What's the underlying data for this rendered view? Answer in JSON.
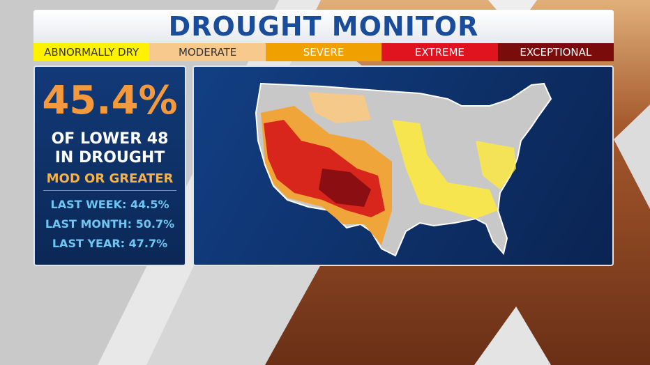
{
  "header": {
    "title": "DROUGHT MONITOR"
  },
  "legend": {
    "items": [
      {
        "label": "ABNORMALLY DRY",
        "color": "#fff200"
      },
      {
        "label": "MODERATE",
        "color": "#f7c98c"
      },
      {
        "label": "SEVERE",
        "color": "#f0a000"
      },
      {
        "label": "EXTREME",
        "color": "#e0141e"
      },
      {
        "label": "EXCEPTIONAL",
        "color": "#7a0c0c"
      }
    ]
  },
  "stats": {
    "headline": "45.4%",
    "caption": [
      "OF LOWER 48",
      "IN DROUGHT"
    ],
    "qualifier": "MOD OR GREATER",
    "comparisons": [
      "LAST WEEK: 44.5%",
      "LAST MONTH: 50.7%",
      "LAST YEAR: 47.7%"
    ]
  }
}
